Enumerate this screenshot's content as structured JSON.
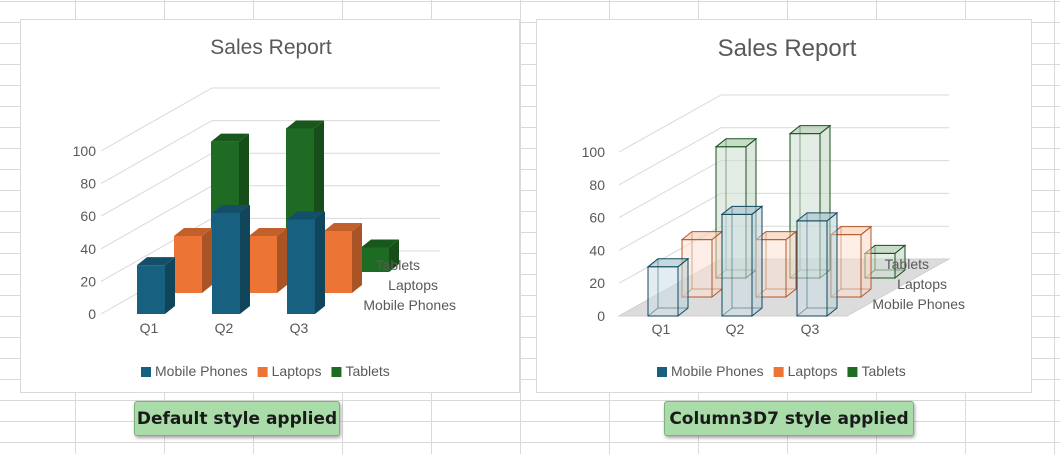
{
  "charts": [
    {
      "style": "default",
      "caption": "Default style applied",
      "chart_data": {
        "type": "bar",
        "title": "Sales Report",
        "categories": [
          "Q1",
          "Q2",
          "Q3"
        ],
        "series": [
          {
            "name": "Mobile Phones",
            "values": [
              30,
              62,
              58
            ],
            "color": "#17607f"
          },
          {
            "name": "Laptops",
            "values": [
              35,
              35,
              38
            ],
            "color": "#ec7535"
          },
          {
            "name": "Tablets",
            "values": [
              80,
              88,
              15
            ],
            "color": "#1e6b23"
          }
        ],
        "yticks": [
          "0",
          "20",
          "40",
          "60",
          "80",
          "100"
        ],
        "ylim": [
          0,
          100
        ],
        "grid": true,
        "legend": "bottom"
      }
    },
    {
      "style": "Column3D7",
      "caption": "Column3D7 style applied",
      "chart_data": {
        "type": "bar",
        "title": "Sales Report",
        "categories": [
          "Q1",
          "Q2",
          "Q3"
        ],
        "series": [
          {
            "name": "Mobile Phones",
            "values": [
              30,
              62,
              58
            ],
            "color": "#17607f"
          },
          {
            "name": "Laptops",
            "values": [
              35,
              35,
              38
            ],
            "color": "#ec7535"
          },
          {
            "name": "Tablets",
            "values": [
              80,
              88,
              15
            ],
            "color": "#1e6b23"
          }
        ],
        "yticks": [
          "0",
          "20",
          "40",
          "60",
          "80",
          "100"
        ],
        "ylim": [
          0,
          100
        ],
        "grid": true,
        "legend": "bottom"
      }
    }
  ]
}
